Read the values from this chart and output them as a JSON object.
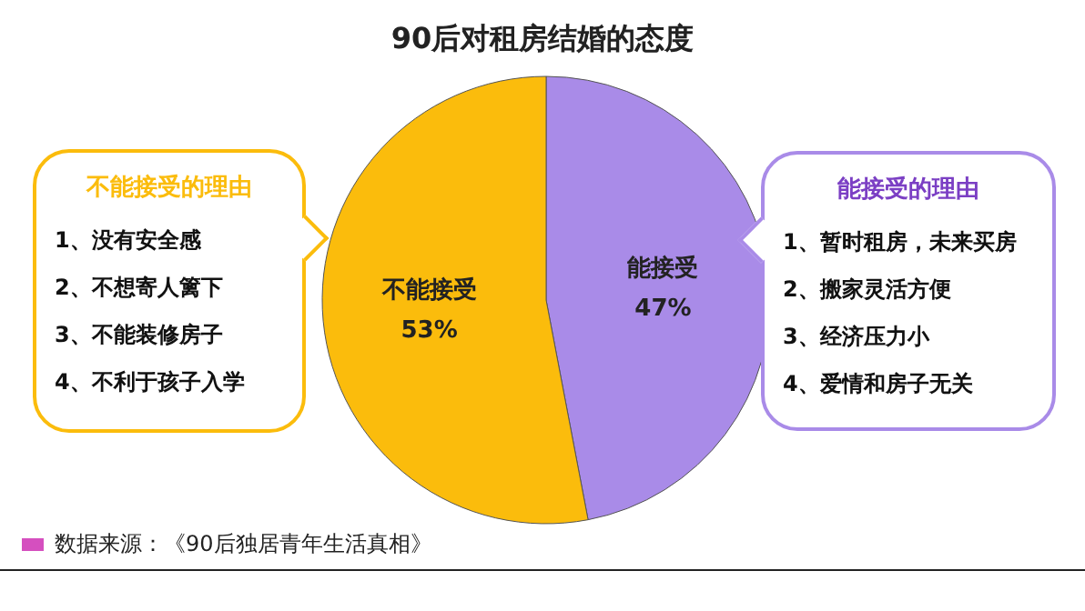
{
  "chart_data": {
    "type": "pie",
    "title": "90后对租房结婚的态度",
    "categories": [
      "能接受",
      "不能接受"
    ],
    "values": [
      47,
      53
    ],
    "value_labels": [
      "47%",
      "53%"
    ],
    "colors": [
      "#a98be8",
      "#fbbc0c"
    ],
    "annotations": [
      "不能接受的理由",
      "1、没有安全感",
      "2、不想寄人篱下",
      "3、不能装修房子",
      "4、不利于孩子入学",
      "能接受的理由",
      "1、暂时租房，未来买房",
      "2、搬家灵活方便",
      "3、经济压力小",
      "4、爱情和房子无关",
      "数据来源：《90后独居青年生活真相》"
    ]
  }
}
